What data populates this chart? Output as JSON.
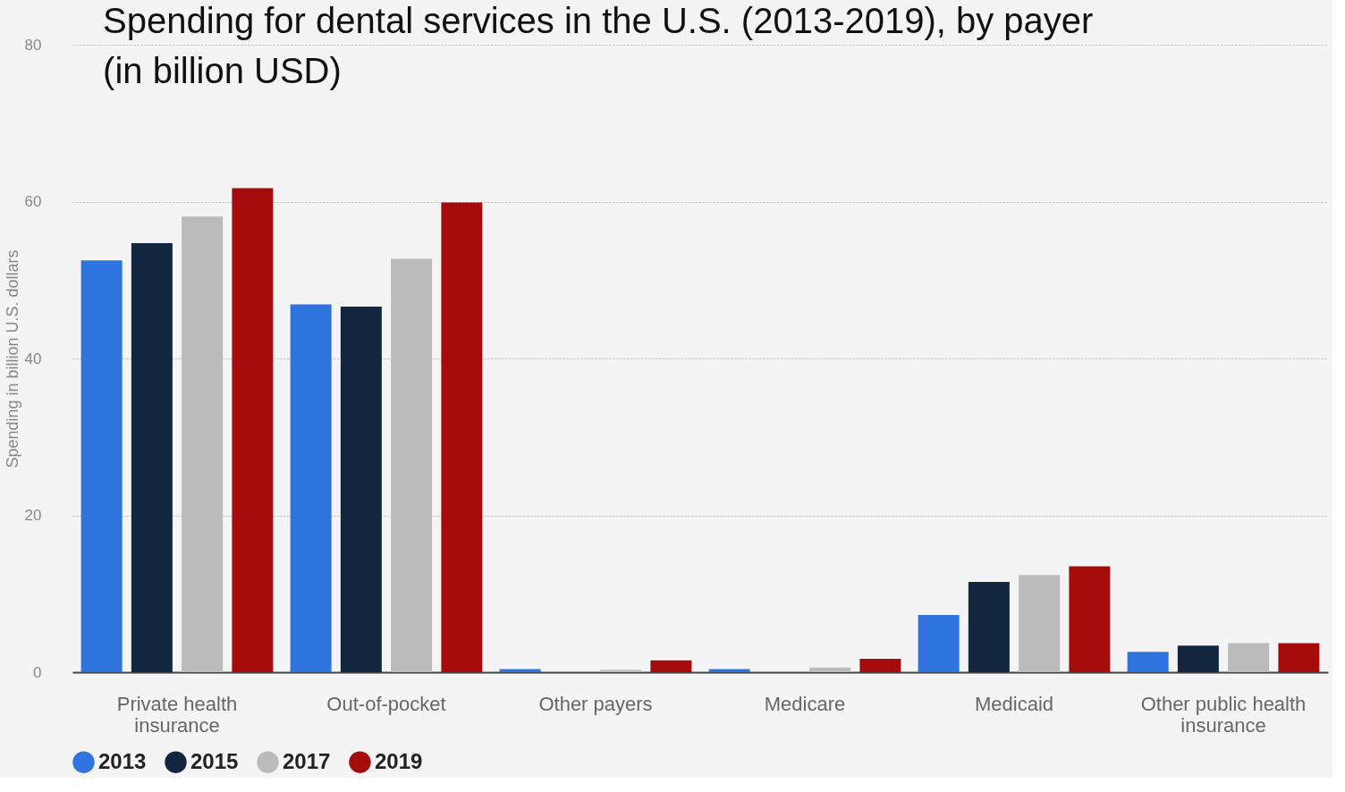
{
  "chart_data": {
    "type": "bar",
    "title": "Spending for dental services in the U.S. (2013-2019), by payer (in billion USD)",
    "ylabel": "Spending in billion U.S. dollars",
    "categories": [
      "Private health insurance",
      "Out-of-pocket",
      "Other payers",
      "Medicare",
      "Medicaid",
      "Other public health insurance"
    ],
    "series": [
      {
        "name": "2013",
        "color": "#2f74de",
        "values": [
          52.5,
          46.9,
          0.4,
          0.4,
          7.3,
          2.6
        ]
      },
      {
        "name": "2015",
        "color": "#12263f",
        "values": [
          54.7,
          46.6,
          0,
          0,
          11.5,
          3.4
        ]
      },
      {
        "name": "2017",
        "color": "#bbbbbb",
        "values": [
          58.1,
          52.7,
          0.3,
          0.6,
          12.4,
          3.7
        ]
      },
      {
        "name": "2019",
        "color": "#a50c0c",
        "values": [
          61.7,
          59.9,
          1.5,
          1.7,
          13.5,
          3.7
        ]
      }
    ],
    "ylim": [
      0,
      80
    ],
    "yticks": [
      0,
      20,
      40,
      60,
      80
    ],
    "grid": "y",
    "legend": "bottom"
  }
}
